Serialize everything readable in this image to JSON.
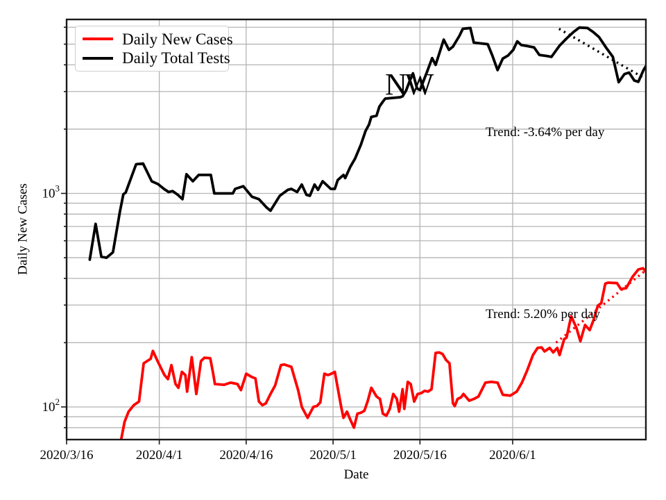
{
  "chart_data": {
    "type": "line",
    "title": "",
    "xlabel": "Date",
    "ylabel": "Daily New Cases",
    "yscale": "log",
    "grid": true,
    "legend_position": "upper-left",
    "x_epoch": "2020/3/16",
    "x_domain_days": [
      0,
      100
    ],
    "ylim": [
      70,
      6530
    ],
    "x_ticks": [
      {
        "day": 0,
        "label": "2020/3/16"
      },
      {
        "day": 16,
        "label": "2020/4/1"
      },
      {
        "day": 31,
        "label": "2020/4/16"
      },
      {
        "day": 46,
        "label": "2020/5/1"
      },
      {
        "day": 61,
        "label": "2020/5/16"
      },
      {
        "day": 77,
        "label": "2020/6/1"
      }
    ],
    "y_ticks_major": [
      {
        "value": 100,
        "mantissa": "10",
        "exponent": "2"
      },
      {
        "value": 1000,
        "mantissa": "10",
        "exponent": "3"
      }
    ],
    "y_minor_gridlines": [
      80,
      90,
      200,
      300,
      400,
      500,
      600,
      700,
      800,
      900,
      2000,
      3000,
      4000,
      5000,
      6000
    ],
    "series": [
      {
        "name": "Daily New Cases",
        "color": "#ff0000",
        "style": "solid",
        "points": [
          [
            9.4,
            70
          ],
          [
            10,
            85
          ],
          [
            10.7,
            95
          ],
          [
            11.6,
            102
          ],
          [
            12.5,
            106
          ],
          [
            13.3,
            160
          ],
          [
            13.9,
            164
          ],
          [
            14.5,
            168
          ],
          [
            14.9,
            183
          ],
          [
            15.7,
            164
          ],
          [
            16.3,
            152
          ],
          [
            16.9,
            141
          ],
          [
            17.5,
            135
          ],
          [
            18.1,
            157
          ],
          [
            18.8,
            128
          ],
          [
            19.3,
            123
          ],
          [
            19.9,
            146
          ],
          [
            20.5,
            141
          ],
          [
            20.8,
            118
          ],
          [
            21.6,
            171
          ],
          [
            22.4,
            115
          ],
          [
            23.2,
            164
          ],
          [
            23.8,
            170
          ],
          [
            24.8,
            169
          ],
          [
            25.3,
            143
          ],
          [
            25.6,
            128
          ],
          [
            27.2,
            127
          ],
          [
            28.3,
            130
          ],
          [
            29.5,
            128
          ],
          [
            30.1,
            120
          ],
          [
            31,
            143
          ],
          [
            32,
            138
          ],
          [
            32.6,
            136
          ],
          [
            33.2,
            106
          ],
          [
            33.8,
            102
          ],
          [
            34.4,
            104
          ],
          [
            35.2,
            115
          ],
          [
            36,
            126
          ],
          [
            37,
            157
          ],
          [
            37.6,
            158
          ],
          [
            38.8,
            154
          ],
          [
            40,
            119
          ],
          [
            40.6,
            100
          ],
          [
            41.6,
            89
          ],
          [
            42.6,
            100
          ],
          [
            43.2,
            101
          ],
          [
            43.8,
            105
          ],
          [
            44.5,
            143
          ],
          [
            45.1,
            141
          ],
          [
            45.7,
            143
          ],
          [
            46.3,
            146
          ],
          [
            47.4,
            100
          ],
          [
            47.8,
            89
          ],
          [
            48.4,
            95
          ],
          [
            49,
            87
          ],
          [
            49.6,
            80
          ],
          [
            50.2,
            93
          ],
          [
            50.8,
            94
          ],
          [
            51.4,
            96
          ],
          [
            52,
            107
          ],
          [
            52.6,
            123
          ],
          [
            53.5,
            112
          ],
          [
            54.1,
            109
          ],
          [
            54.6,
            93
          ],
          [
            55.2,
            91
          ],
          [
            55.8,
            98
          ],
          [
            56.4,
            115
          ],
          [
            57,
            109
          ],
          [
            57.4,
            95
          ],
          [
            58,
            121
          ],
          [
            58.3,
            98
          ],
          [
            58.9,
            131
          ],
          [
            59.4,
            128
          ],
          [
            60,
            106
          ],
          [
            60.6,
            115
          ],
          [
            61.2,
            116
          ],
          [
            61.8,
            119
          ],
          [
            62.4,
            118
          ],
          [
            63,
            121
          ],
          [
            63.7,
            179
          ],
          [
            64.3,
            180
          ],
          [
            64.9,
            177
          ],
          [
            65.5,
            166
          ],
          [
            66.1,
            160
          ],
          [
            66.7,
            104
          ],
          [
            67,
            101
          ],
          [
            67.5,
            109
          ],
          [
            68.1,
            111
          ],
          [
            68.5,
            115
          ],
          [
            69.5,
            107
          ],
          [
            70.3,
            109
          ],
          [
            71.1,
            112
          ],
          [
            72.3,
            130
          ],
          [
            73.3,
            131
          ],
          [
            74.4,
            130
          ],
          [
            75.3,
            114
          ],
          [
            76.6,
            113
          ],
          [
            77.7,
            118
          ],
          [
            78.6,
            130
          ],
          [
            79.5,
            148
          ],
          [
            80.5,
            175
          ],
          [
            81.3,
            189
          ],
          [
            82,
            190
          ],
          [
            82.5,
            182
          ],
          [
            83.4,
            189
          ],
          [
            84,
            180
          ],
          [
            84.7,
            189
          ],
          [
            85.1,
            175
          ],
          [
            85.9,
            208
          ],
          [
            86.3,
            211
          ],
          [
            87.1,
            266
          ],
          [
            88,
            235
          ],
          [
            88.7,
            203
          ],
          [
            89.5,
            242
          ],
          [
            90.3,
            229
          ],
          [
            91,
            257
          ],
          [
            91.7,
            298
          ],
          [
            92.3,
            306
          ],
          [
            93,
            378
          ],
          [
            93.5,
            382
          ],
          [
            95,
            380
          ],
          [
            95.7,
            356
          ],
          [
            96.6,
            360
          ],
          [
            97.7,
            407
          ],
          [
            98.7,
            440
          ],
          [
            99.5,
            446
          ],
          [
            100,
            430
          ]
        ]
      },
      {
        "name": "Daily Total Tests",
        "color": "#000000",
        "style": "solid",
        "points": [
          [
            4,
            490
          ],
          [
            5,
            720
          ],
          [
            6,
            505
          ],
          [
            6.9,
            500
          ],
          [
            8,
            530
          ],
          [
            9.2,
            820
          ],
          [
            9.8,
            990
          ],
          [
            10.2,
            1010
          ],
          [
            12,
            1370
          ],
          [
            13.2,
            1380
          ],
          [
            14.7,
            1140
          ],
          [
            15.8,
            1105
          ],
          [
            16.8,
            1050
          ],
          [
            17.6,
            1015
          ],
          [
            18.3,
            1025
          ],
          [
            19.2,
            985
          ],
          [
            20,
            940
          ],
          [
            20.7,
            1230
          ],
          [
            21.8,
            1140
          ],
          [
            22.8,
            1220
          ],
          [
            24.9,
            1220
          ],
          [
            25.5,
            1000
          ],
          [
            28.7,
            1000
          ],
          [
            29.1,
            1050
          ],
          [
            30.5,
            1080
          ],
          [
            32,
            965
          ],
          [
            33.2,
            940
          ],
          [
            34.5,
            860
          ],
          [
            35.2,
            830
          ],
          [
            36.8,
            975
          ],
          [
            38.2,
            1040
          ],
          [
            38.8,
            1050
          ],
          [
            39.8,
            1015
          ],
          [
            40.6,
            1100
          ],
          [
            41.4,
            985
          ],
          [
            42,
            975
          ],
          [
            42.8,
            1100
          ],
          [
            43.4,
            1040
          ],
          [
            44.2,
            1140
          ],
          [
            45.6,
            1050
          ],
          [
            46.3,
            1050
          ],
          [
            46.8,
            1155
          ],
          [
            47.8,
            1220
          ],
          [
            48.1,
            1180
          ],
          [
            49,
            1335
          ],
          [
            49.8,
            1455
          ],
          [
            50.8,
            1690
          ],
          [
            51.6,
            1960
          ],
          [
            52.2,
            2100
          ],
          [
            52.6,
            2280
          ],
          [
            53.5,
            2310
          ],
          [
            54,
            2550
          ],
          [
            54.6,
            2690
          ],
          [
            55,
            2780
          ],
          [
            57.6,
            2820
          ],
          [
            58,
            2850
          ],
          [
            58.6,
            3030
          ],
          [
            59.3,
            3400
          ],
          [
            59.8,
            3650
          ],
          [
            60.5,
            3100
          ],
          [
            61,
            3050
          ],
          [
            62.2,
            3700
          ],
          [
            63.1,
            4300
          ],
          [
            63.7,
            4000
          ],
          [
            65.1,
            5250
          ],
          [
            66,
            4700
          ],
          [
            66.7,
            4870
          ],
          [
            67.8,
            5460
          ],
          [
            68.4,
            5900
          ],
          [
            69.7,
            5950
          ],
          [
            70.3,
            5080
          ],
          [
            72.7,
            5000
          ],
          [
            73.5,
            4420
          ],
          [
            74.4,
            3780
          ],
          [
            75.3,
            4280
          ],
          [
            76.2,
            4420
          ],
          [
            77.1,
            4700
          ],
          [
            77.8,
            5150
          ],
          [
            78.5,
            4950
          ],
          [
            79.5,
            4900
          ],
          [
            80.7,
            4830
          ],
          [
            81.6,
            4450
          ],
          [
            82.9,
            4400
          ],
          [
            83.7,
            4360
          ],
          [
            85.1,
            4920
          ],
          [
            86.3,
            5310
          ],
          [
            87.5,
            5700
          ],
          [
            88.5,
            5980
          ],
          [
            89.9,
            5950
          ],
          [
            90.9,
            5700
          ],
          [
            91.9,
            5400
          ],
          [
            93.1,
            4830
          ],
          [
            94.3,
            4360
          ],
          [
            95.3,
            3320
          ],
          [
            96.3,
            3620
          ],
          [
            97.1,
            3680
          ],
          [
            98,
            3380
          ],
          [
            98.7,
            3330
          ],
          [
            99.6,
            3790
          ],
          [
            100,
            3940
          ]
        ]
      },
      {
        "name": "Daily New Cases trend",
        "color": "#ff0000",
        "style": "dotted",
        "rate_pct_per_day": 5.2,
        "points": [
          [
            84.5,
            200
          ],
          [
            100,
            437
          ]
        ]
      },
      {
        "name": "Daily Total Tests trend",
        "color": "#000000",
        "style": "dotted",
        "rate_pct_per_day": -3.64,
        "points": [
          [
            85,
            5900
          ],
          [
            100,
            3430
          ]
        ]
      }
    ],
    "annotations": [
      {
        "id": "nw",
        "text": "NW"
      },
      {
        "id": "trend-tests",
        "text": "Trend: -3.64% per day"
      },
      {
        "id": "trend-cases",
        "text": "Trend: 5.20% per day"
      }
    ]
  },
  "legend": {
    "items": [
      {
        "label": "Daily New Cases",
        "color": "#ff0000"
      },
      {
        "label": "Daily Total Tests",
        "color": "#000000"
      }
    ]
  },
  "annotations": {
    "nw": "NW",
    "trend_tests": "Trend: -3.64% per day",
    "trend_cases": "Trend: 5.20% per day"
  },
  "axes": {
    "x_label": "Date",
    "y_label": "Daily New Cases"
  },
  "colors": {
    "cases": "#ff0000",
    "tests": "#000000",
    "grid": "#b4b4b4",
    "spine": "#1a1a1a",
    "background": "#ffffff"
  }
}
